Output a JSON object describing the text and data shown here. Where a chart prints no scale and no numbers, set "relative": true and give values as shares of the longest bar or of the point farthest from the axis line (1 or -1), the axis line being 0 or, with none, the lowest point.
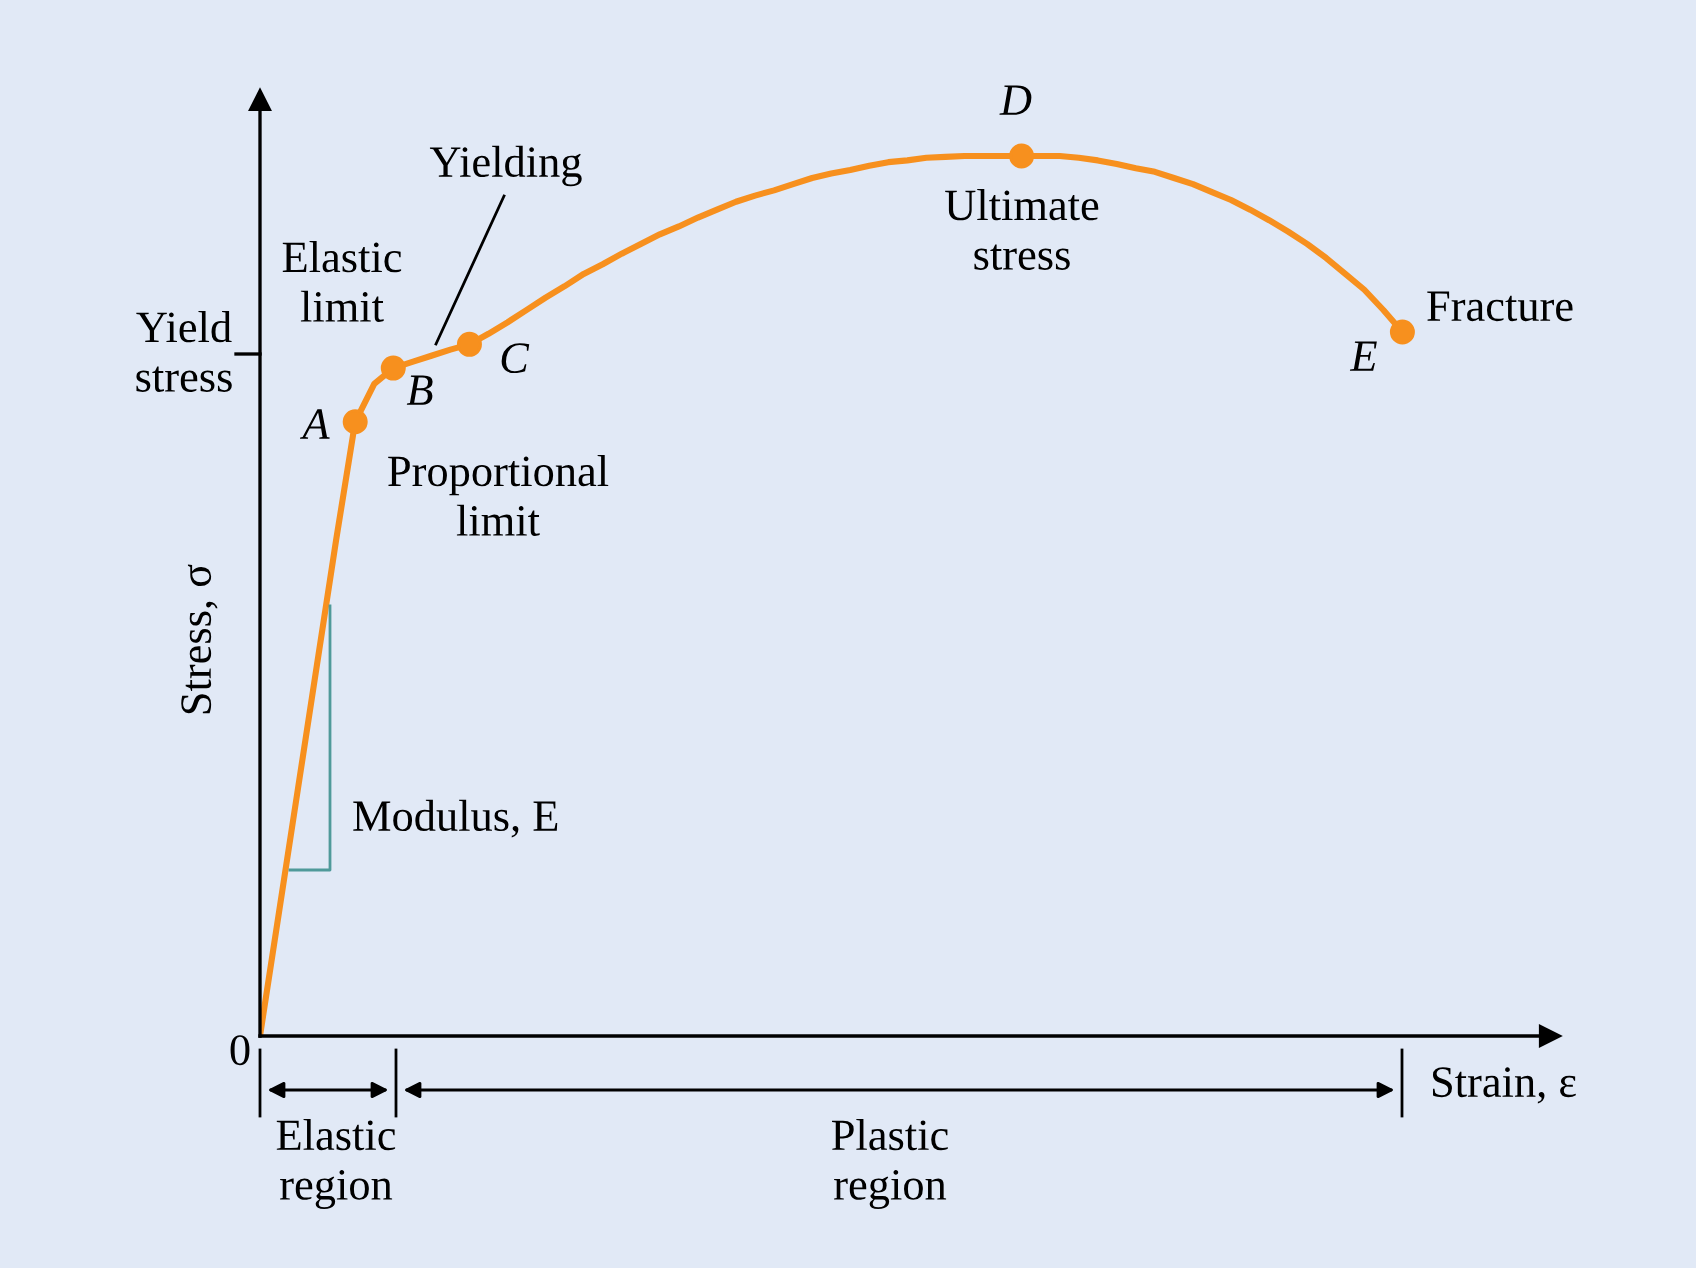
{
  "chart_data": {
    "type": "line",
    "relative": true,
    "xlabel": "Strain, ε",
    "ylabel": "Stress, σ",
    "legend": false,
    "line_style": "solid",
    "categories": [
      null,
      null,
      null,
      null,
      null,
      null,
      null,
      null,
      null,
      null,
      null,
      null,
      null,
      null,
      null,
      null,
      null,
      null,
      null,
      null,
      null,
      null,
      null,
      null,
      null,
      null,
      null,
      null,
      null,
      null,
      null,
      null,
      null,
      null,
      null,
      null,
      null,
      null,
      null,
      null,
      null,
      null,
      null,
      null,
      null,
      null,
      null,
      null,
      null,
      null,
      null,
      null,
      null,
      null,
      null,
      null,
      null,
      null,
      null,
      null,
      null
    ],
    "series": [
      {
        "color": "#f7901e",
        "values": [
          0,
          0.141,
          0.282,
          0.423,
          0.564,
          0.698,
          0.741,
          0.759,
          0.766,
          0.773,
          0.78,
          0.786,
          0.798,
          0.811,
          0.825,
          0.839,
          0.852,
          0.866,
          0.877,
          0.889,
          0.9,
          0.911,
          0.92,
          0.93,
          0.939,
          0.948,
          0.955,
          0.961,
          0.968,
          0.975,
          0.98,
          0.984,
          0.989,
          0.993,
          0.995,
          0.998,
          0.999,
          1.0,
          1.0,
          1.0,
          1.0,
          1.0,
          1.0,
          0.998,
          0.995,
          0.991,
          0.986,
          0.982,
          0.975,
          0.968,
          0.959,
          0.95,
          0.939,
          0.927,
          0.914,
          0.9,
          0.884,
          0.866,
          0.848,
          0.825,
          0.8
        ]
      }
    ],
    "annotations": [
      "Yielding",
      "Elastic\nlimit",
      "Proportional\nlimit",
      "Ultimate\nstress",
      "Fracture",
      "Modulus, E",
      "A",
      "B",
      "C",
      "D",
      "E",
      "0",
      "Elastic\nregion",
      "Plastic\nregion",
      "Yield\nstress"
    ]
  }
}
